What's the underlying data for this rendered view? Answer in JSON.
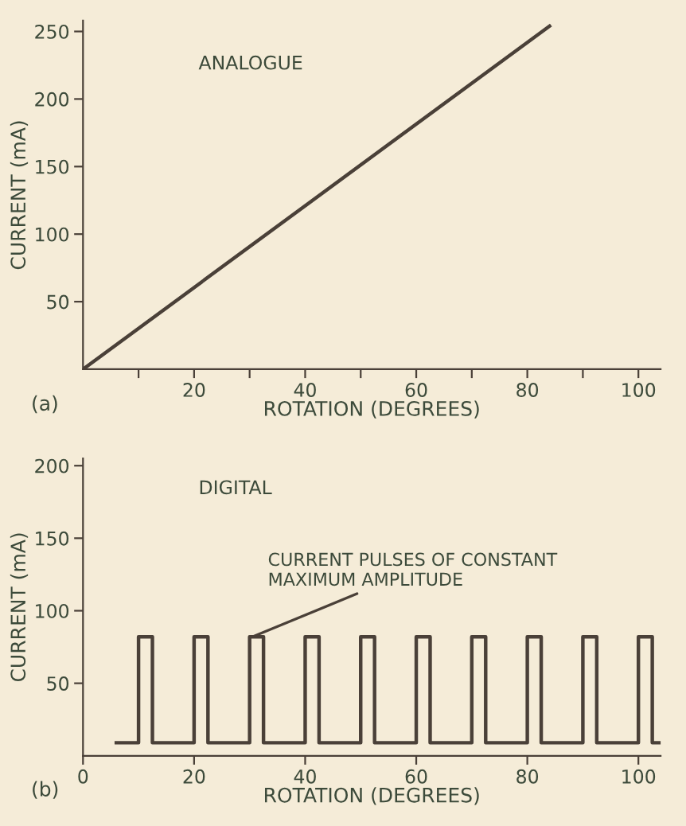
{
  "chart_data": [
    {
      "type": "line",
      "title": "ANALOGUE",
      "xlabel": "ROTATION (DEGREES)",
      "ylabel": "CURRENT (mA)",
      "annotations": [
        "(a)"
      ],
      "x": [
        0,
        84
      ],
      "series": [
        {
          "color": "#4a4038",
          "values": [
            0,
            254
          ]
        }
      ],
      "xlim": [
        0,
        104
      ],
      "ylim": [
        0,
        258
      ],
      "xticks": [
        {
          "value": 10,
          "label": null
        },
        20,
        {
          "value": 30,
          "label": null
        },
        40,
        {
          "value": 50,
          "label": null
        },
        60,
        {
          "value": 70,
          "label": null
        },
        80,
        {
          "value": 90,
          "label": null
        },
        100
      ],
      "yticks": [
        50,
        100,
        150,
        200,
        250
      ],
      "grid": false,
      "legend": false,
      "marker": "none",
      "line_style": "solid"
    },
    {
      "type": "line",
      "title": "DIGITAL",
      "xlabel": "ROTATION (DEGREES)",
      "ylabel": "CURRENT (mA)",
      "annotations": [
        {
          "text": "CURRENT PULSES OF CONSTANT\nMAXIMUM AMPLITUDE",
          "x": 30.5,
          "y": 82
        },
        "(b)"
      ],
      "x": [
        6,
        10,
        10,
        12.5,
        12.5,
        20,
        20,
        22.5,
        22.5,
        30,
        30,
        32.5,
        32.5,
        40,
        40,
        42.5,
        42.5,
        50,
        50,
        52.5,
        52.5,
        60,
        60,
        62.5,
        62.5,
        70,
        70,
        72.5,
        72.5,
        80,
        80,
        82.5,
        82.5,
        90,
        90,
        92.5,
        92.5,
        100,
        100,
        102.5,
        102.5,
        104
      ],
      "series": [
        {
          "color": "#4a4038",
          "values": [
            9,
            9,
            82,
            82,
            9,
            9,
            82,
            82,
            9,
            9,
            82,
            82,
            9,
            9,
            82,
            82,
            9,
            9,
            82,
            82,
            9,
            9,
            82,
            82,
            9,
            9,
            82,
            82,
            9,
            9,
            82,
            82,
            9,
            9,
            82,
            82,
            9,
            9,
            82,
            82,
            9,
            9
          ]
        }
      ],
      "xlim": [
        0,
        104
      ],
      "ylim": [
        0,
        205
      ],
      "xticks": [
        0,
        20,
        40,
        60,
        80,
        100
      ],
      "yticks": [
        50,
        100,
        150,
        200
      ],
      "grid": false,
      "legend": false,
      "marker": "none",
      "line_style": "solid"
    }
  ]
}
